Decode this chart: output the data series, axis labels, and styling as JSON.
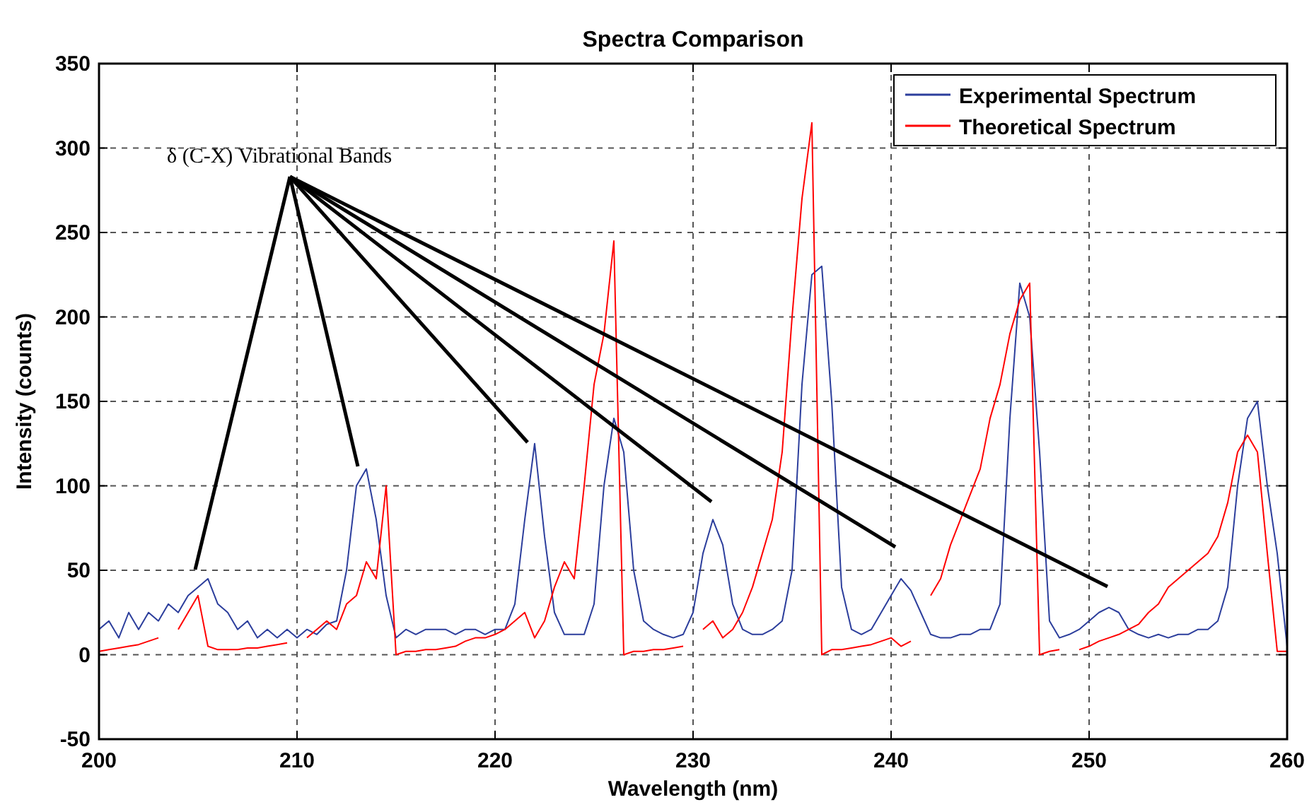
{
  "chart_data": {
    "type": "line",
    "title": "Spectra Comparison",
    "xlabel": "Wavelength (nm)",
    "ylabel": "Intensity (counts)",
    "annotations": [
      "δ (C-X) Vibrational Bands"
    ],
    "x": [
      200,
      200.5,
      201,
      201.5,
      202,
      202.5,
      203,
      203.5,
      204,
      204.5,
      205,
      205.5,
      206,
      206.5,
      207,
      207.5,
      208,
      208.5,
      209,
      209.5,
      210,
      210.5,
      211,
      211.5,
      212,
      212.5,
      213,
      213.5,
      214,
      214.5,
      215,
      215.5,
      216,
      216.5,
      217,
      217.5,
      218,
      218.5,
      219,
      219.5,
      220,
      220.5,
      221,
      221.5,
      222,
      222.5,
      223,
      223.5,
      224,
      224.5,
      225,
      225.5,
      226,
      226.5,
      227,
      227.5,
      228,
      228.5,
      229,
      229.5,
      230,
      230.5,
      231,
      231.5,
      232,
      232.5,
      233,
      233.5,
      234,
      234.5,
      235,
      235.5,
      236,
      236.5,
      237,
      237.5,
      238,
      238.5,
      239,
      239.5,
      240,
      240.5,
      241,
      241.5,
      242,
      242.5,
      243,
      243.5,
      244,
      244.5,
      245,
      245.5,
      246,
      246.5,
      247,
      247.5,
      248,
      248.5,
      249,
      249.5,
      250,
      250.5,
      251,
      251.5,
      252,
      252.5,
      253,
      253.5,
      254,
      254.5,
      255,
      255.5,
      256,
      256.5,
      257,
      257.5,
      258,
      258.5,
      259,
      259.5,
      260
    ],
    "series": [
      {
        "name": "Experimental Spectrum",
        "color": "#2c3e9c",
        "values": [
          15,
          20,
          10,
          25,
          15,
          25,
          20,
          30,
          25,
          35,
          40,
          45,
          30,
          25,
          15,
          20,
          10,
          15,
          10,
          15,
          10,
          15,
          12,
          18,
          20,
          50,
          100,
          110,
          80,
          35,
          10,
          15,
          12,
          15,
          15,
          15,
          12,
          15,
          15,
          12,
          15,
          15,
          30,
          80,
          125,
          70,
          25,
          12,
          12,
          12,
          30,
          100,
          140,
          120,
          50,
          20,
          15,
          12,
          10,
          12,
          25,
          60,
          80,
          65,
          30,
          15,
          12,
          12,
          15,
          20,
          50,
          160,
          225,
          230,
          150,
          40,
          15,
          12,
          15,
          25,
          35,
          45,
          38,
          25,
          12,
          10,
          10,
          12,
          12,
          15,
          15,
          30,
          140,
          220,
          200,
          120,
          20,
          10,
          12,
          15,
          20,
          25,
          28,
          25,
          15,
          12,
          10,
          12,
          10,
          12,
          12,
          15,
          15,
          20,
          40,
          100,
          140,
          150,
          100,
          60,
          5
        ]
      },
      {
        "name": "Theoretical Spectrum",
        "color": "#ff0000",
        "values": [
          2,
          3,
          4,
          5,
          6,
          8,
          10,
          null,
          15,
          25,
          35,
          5,
          3,
          3,
          3,
          4,
          4,
          5,
          6,
          7,
          null,
          10,
          15,
          20,
          15,
          30,
          35,
          55,
          45,
          100,
          0,
          2,
          2,
          3,
          3,
          4,
          5,
          8,
          10,
          10,
          12,
          15,
          20,
          25,
          10,
          20,
          40,
          55,
          45,
          100,
          160,
          190,
          245,
          0,
          2,
          2,
          3,
          3,
          4,
          5,
          null,
          15,
          20,
          10,
          15,
          25,
          40,
          60,
          80,
          120,
          200,
          270,
          315,
          0,
          3,
          3,
          4,
          5,
          6,
          8,
          10,
          5,
          8,
          null,
          35,
          45,
          65,
          80,
          95,
          110,
          140,
          160,
          190,
          210,
          220,
          0,
          2,
          3,
          null,
          3,
          5,
          8,
          10,
          12,
          15,
          18,
          25,
          30,
          40,
          45,
          50,
          55,
          60,
          70,
          90,
          120,
          130,
          120,
          60,
          2,
          2
        ]
      }
    ],
    "xlim": [
      200,
      260
    ],
    "ylim": [
      -50,
      350
    ],
    "xticks": [
      200,
      210,
      220,
      230,
      240,
      250,
      260
    ],
    "yticks": [
      -50,
      0,
      50,
      100,
      150,
      200,
      250,
      300,
      350
    ],
    "grid": true,
    "legend": "top right",
    "line_style": "solid",
    "marker": "none"
  }
}
